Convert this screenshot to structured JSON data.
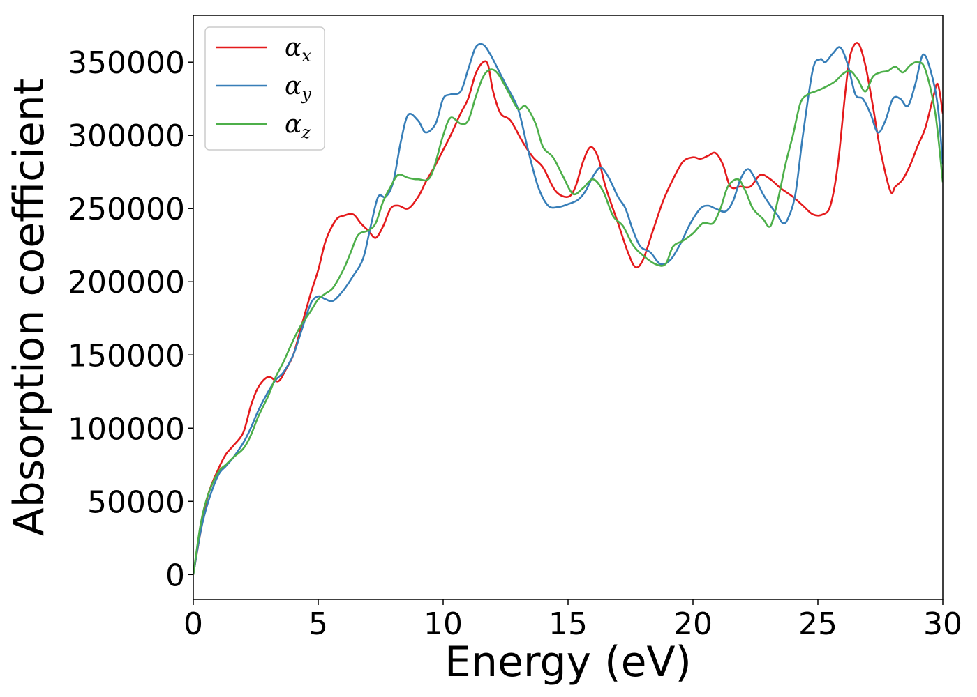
{
  "chart_data": {
    "type": "line",
    "title": "",
    "xlabel": "Energy (eV)",
    "ylabel": "Absorption coefficient",
    "xlim": [
      0,
      30
    ],
    "ylim": [
      -17000,
      382000
    ],
    "xticks": [
      0,
      5,
      10,
      15,
      20,
      25,
      30
    ],
    "yticks": [
      0,
      50000,
      100000,
      150000,
      200000,
      250000,
      300000,
      350000
    ],
    "grid": false,
    "legend_position": "upper-left",
    "series": [
      {
        "name": "α",
        "sub": "x",
        "color": "#e41a1c",
        "x": [
          0,
          0.3,
          0.6,
          1,
          1.3,
          1.6,
          2,
          2.3,
          2.6,
          3,
          3.4,
          3.7,
          4,
          4.3,
          4.7,
          5,
          5.3,
          5.7,
          6,
          6.4,
          6.7,
          7,
          7.3,
          7.6,
          7.9,
          8.2,
          8.6,
          9,
          9.3,
          9.7,
          10,
          10.3,
          10.7,
          11,
          11.3,
          11.6,
          11.8,
          12,
          12.3,
          12.7,
          13.2,
          13.6,
          14,
          14.5,
          15,
          15.3,
          15.6,
          15.9,
          16.2,
          16.5,
          17,
          17.4,
          17.7,
          18,
          18.4,
          18.8,
          19.2,
          19.6,
          20,
          20.3,
          20.6,
          20.9,
          21.2,
          21.5,
          21.9,
          22.3,
          22.7,
          23.1,
          23.5,
          24,
          24.4,
          24.8,
          25.2,
          25.5,
          25.8,
          26.1,
          26.3,
          26.6,
          26.9,
          27.2,
          27.5,
          27.9,
          28.1,
          28.4,
          28.7,
          29,
          29.3,
          29.6,
          29.8,
          30
        ],
        "y": [
          0,
          30000,
          55000,
          72000,
          82000,
          88000,
          97000,
          115000,
          128000,
          135000,
          132000,
          140000,
          150000,
          168000,
          192000,
          208000,
          228000,
          242000,
          245000,
          246000,
          240000,
          235000,
          230000,
          238000,
          250000,
          252000,
          250000,
          258000,
          268000,
          280000,
          290000,
          300000,
          315000,
          325000,
          342000,
          350000,
          348000,
          330000,
          315000,
          310000,
          295000,
          285000,
          278000,
          262000,
          258000,
          265000,
          282000,
          292000,
          285000,
          265000,
          240000,
          220000,
          210000,
          215000,
          235000,
          255000,
          270000,
          282000,
          285000,
          284000,
          286000,
          288000,
          280000,
          265000,
          265000,
          265000,
          273000,
          270000,
          264000,
          258000,
          252000,
          246000,
          246000,
          252000,
          280000,
          330000,
          355000,
          363000,
          348000,
          320000,
          290000,
          262000,
          265000,
          270000,
          280000,
          293000,
          305000,
          325000,
          335000,
          315000
        ]
      },
      {
        "name": "α",
        "sub": "y",
        "color": "#377eb8",
        "x": [
          0,
          0.3,
          0.6,
          1,
          1.3,
          1.6,
          2,
          2.3,
          2.6,
          3,
          3.3,
          3.6,
          4,
          4.3,
          4.7,
          5,
          5.3,
          5.6,
          6,
          6.4,
          6.8,
          7.1,
          7.4,
          7.7,
          8,
          8.3,
          8.6,
          9,
          9.3,
          9.7,
          10,
          10.3,
          10.7,
          11,
          11.3,
          11.6,
          11.9,
          12.2,
          12.5,
          13,
          13.4,
          13.8,
          14.2,
          14.6,
          15,
          15.4,
          15.7,
          16,
          16.3,
          16.6,
          17,
          17.3,
          17.6,
          17.9,
          18.3,
          18.7,
          19.1,
          19.5,
          19.9,
          20.3,
          20.6,
          20.9,
          21.3,
          21.6,
          21.9,
          22.2,
          22.5,
          22.8,
          23.1,
          23.4,
          23.6,
          23.8,
          24.1,
          24.4,
          24.8,
          25.1,
          25.3,
          25.6,
          25.9,
          26.2,
          26.5,
          26.8,
          27.1,
          27.4,
          27.7,
          28,
          28.3,
          28.6,
          28.9,
          29.2,
          29.5,
          29.8,
          30
        ],
        "y": [
          0,
          30000,
          50000,
          68000,
          74000,
          80000,
          90000,
          100000,
          112000,
          125000,
          133000,
          138000,
          150000,
          165000,
          185000,
          190000,
          188000,
          187000,
          194000,
          204000,
          216000,
          238000,
          258000,
          258000,
          268000,
          295000,
          314000,
          310000,
          302000,
          308000,
          325000,
          328000,
          330000,
          345000,
          360000,
          362000,
          355000,
          345000,
          335000,
          318000,
          290000,
          265000,
          252000,
          251000,
          253000,
          256000,
          262000,
          272000,
          278000,
          272000,
          258000,
          250000,
          235000,
          224000,
          220000,
          212000,
          215000,
          226000,
          240000,
          250000,
          252000,
          250000,
          248000,
          255000,
          270000,
          277000,
          270000,
          260000,
          252000,
          245000,
          240000,
          243000,
          260000,
          300000,
          345000,
          352000,
          350000,
          356000,
          360000,
          348000,
          328000,
          325000,
          315000,
          302000,
          310000,
          325000,
          325000,
          320000,
          335000,
          355000,
          345000,
          320000,
          280000
        ]
      },
      {
        "name": "α",
        "sub": "z",
        "color": "#4daf4a",
        "x": [
          0,
          0.3,
          0.6,
          1,
          1.3,
          1.6,
          2,
          2.3,
          2.6,
          3,
          3.3,
          3.6,
          4,
          4.3,
          4.7,
          5,
          5.3,
          5.6,
          6,
          6.3,
          6.6,
          7,
          7.3,
          7.6,
          7.9,
          8.2,
          8.6,
          9,
          9.5,
          10,
          10.3,
          10.7,
          11,
          11.3,
          11.6,
          11.9,
          12.2,
          12.6,
          13,
          13.3,
          13.7,
          14,
          14.4,
          14.8,
          15.2,
          15.6,
          16,
          16.4,
          16.8,
          17.2,
          17.6,
          18,
          18.5,
          18.9,
          19.2,
          19.6,
          20,
          20.4,
          20.8,
          21.1,
          21.4,
          21.8,
          22.1,
          22.4,
          22.8,
          23.1,
          23.4,
          23.7,
          24,
          24.3,
          24.6,
          24.9,
          25.3,
          25.7,
          26,
          26.3,
          26.6,
          26.9,
          27.2,
          27.5,
          27.8,
          28.1,
          28.4,
          28.7,
          29,
          29.3,
          29.7,
          30
        ],
        "y": [
          0,
          35000,
          55000,
          70000,
          75000,
          80000,
          86000,
          95000,
          108000,
          122000,
          135000,
          145000,
          160000,
          170000,
          180000,
          188000,
          192000,
          196000,
          208000,
          220000,
          232000,
          235000,
          240000,
          255000,
          265000,
          273000,
          271000,
          270000,
          272000,
          300000,
          312000,
          308000,
          310000,
          326000,
          340000,
          345000,
          342000,
          330000,
          318000,
          320000,
          308000,
          292000,
          285000,
          272000,
          260000,
          264000,
          270000,
          262000,
          245000,
          238000,
          225000,
          218000,
          212000,
          212000,
          224000,
          228000,
          233000,
          240000,
          240000,
          250000,
          265000,
          270000,
          262000,
          250000,
          243000,
          238000,
          256000,
          280000,
          300000,
          322000,
          328000,
          330000,
          333000,
          337000,
          342000,
          344000,
          338000,
          330000,
          340000,
          343000,
          344000,
          347000,
          343000,
          348000,
          350000,
          345000,
          315000,
          268000
        ]
      }
    ]
  }
}
